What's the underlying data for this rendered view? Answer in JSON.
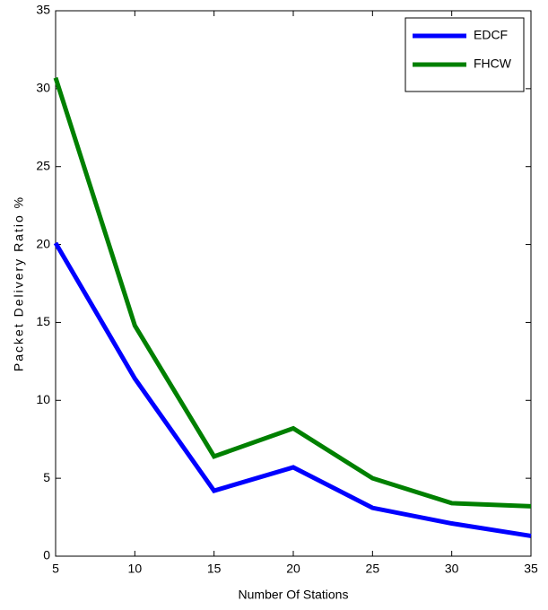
{
  "chart_data": {
    "type": "line",
    "x_label": "Number Of Stations",
    "y_label": "Packet Delivery Ratio %",
    "x": [
      5,
      10,
      15,
      20,
      25,
      30,
      35
    ],
    "series": [
      {
        "name": "EDCF",
        "color": "#0000ff",
        "values": [
          20.1,
          11.4,
          4.2,
          5.7,
          3.1,
          2.1,
          1.3
        ]
      },
      {
        "name": "FHCW",
        "color": "#008000",
        "values": [
          30.7,
          14.8,
          6.4,
          8.2,
          5.0,
          3.4,
          3.2
        ]
      }
    ],
    "xlim": [
      5,
      35
    ],
    "xticks": [
      5,
      10,
      15,
      20,
      25,
      30,
      35
    ],
    "ylim": [
      0,
      35
    ],
    "yticks": [
      0,
      5,
      10,
      15,
      20,
      25,
      30,
      35
    ],
    "grid": false,
    "legend": "upper right"
  }
}
